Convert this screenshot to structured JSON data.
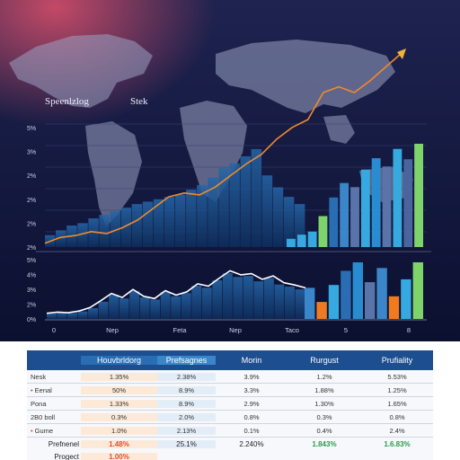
{
  "colors": {
    "bg_top": "#1e2350",
    "bg_bottom": "#0b1030",
    "glow": "#e0506a",
    "map": "#9aa3c2",
    "area": "#1b4f8a",
    "line_orange": "#f08a2c",
    "line_white": "#ffffff",
    "accent_green": "#7ed36b",
    "accent_orange": "#f07a20",
    "accent_cyan": "#36a9e0"
  },
  "chart_data": [
    {
      "type": "line",
      "title": "Speenlzlog",
      "subtitle": "Stek",
      "y_ticks": [
        "5%",
        "3%",
        "2%",
        "2%",
        "2%",
        "2%"
      ],
      "series": [
        {
          "values": [
            2,
            5,
            6,
            8,
            7,
            10,
            14,
            20,
            26,
            28,
            27,
            31,
            37,
            43,
            48,
            56,
            62,
            66,
            80,
            83,
            80,
            86,
            93,
            100
          ]
        }
      ],
      "area_values": [
        10,
        14,
        18,
        20,
        24,
        27,
        30,
        33,
        36,
        38,
        40,
        42,
        44,
        48,
        52,
        58,
        66,
        70,
        76,
        82,
        60,
        50,
        42,
        36
      ],
      "bars": [
        {
          "value": 8,
          "color": "#36a9e0"
        },
        {
          "value": 12,
          "color": "#36a9e0"
        },
        {
          "value": 15,
          "color": "#36a9e0"
        },
        {
          "value": 30,
          "color": "#7ed36b"
        },
        {
          "value": 48,
          "color": "#2a6db3"
        },
        {
          "value": 62,
          "color": "#3b86c9"
        },
        {
          "value": 58,
          "color": "#5a73a8"
        },
        {
          "value": 75,
          "color": "#36a9e0"
        },
        {
          "value": 86,
          "color": "#2a8cd0"
        },
        {
          "value": 78,
          "color": "#5a73a8"
        },
        {
          "value": 95,
          "color": "#36a9e0"
        },
        {
          "value": 85,
          "color": "#4a64a0"
        },
        {
          "value": 100,
          "color": "#7ed36b"
        }
      ]
    },
    {
      "type": "line",
      "y_ticks": [
        "5%",
        "4%",
        "3%",
        "2%",
        "0%"
      ],
      "x_ticks": [
        "0",
        "Nep",
        "Feta",
        "Nep",
        "Taco",
        "5",
        "8"
      ],
      "series": [
        {
          "values": [
            10,
            12,
            11,
            14,
            20,
            32,
            45,
            38,
            52,
            40,
            36,
            50,
            42,
            48,
            62,
            58,
            72,
            85,
            78,
            80,
            70,
            76,
            64,
            60,
            55
          ]
        }
      ],
      "bars": [
        {
          "value": 55,
          "color": "#3b86c9"
        },
        {
          "value": 30,
          "color": "#f07a20"
        },
        {
          "value": 60,
          "color": "#36a9e0"
        },
        {
          "value": 85,
          "color": "#2a6db3"
        },
        {
          "value": 100,
          "color": "#2a8cd0"
        },
        {
          "value": 65,
          "color": "#5a73a8"
        },
        {
          "value": 90,
          "color": "#3b86c9"
        },
        {
          "value": 40,
          "color": "#f07a20"
        },
        {
          "value": 70,
          "color": "#36a9e0"
        },
        {
          "value": 100,
          "color": "#7ed36b"
        }
      ]
    },
    {
      "type": "table",
      "columns": [
        "",
        "Houvbrldorg",
        "Prefsagnes",
        "Morin",
        "Rurgust",
        "Prufiality"
      ],
      "rows": [
        {
          "label": "Nesk",
          "bullet": false,
          "cells": [
            "1.35%",
            "2.38%",
            "3.9%",
            "1.2%",
            "5.53%"
          ]
        },
        {
          "label": "Eenal",
          "bullet": true,
          "cells": [
            "50%",
            "8.9%",
            "3.3%",
            "1.88%",
            "1.25%"
          ]
        },
        {
          "label": "Pona",
          "bullet": false,
          "cells": [
            "1.33%",
            "8.9%",
            "2.9%",
            "1.30%",
            "1.65%"
          ]
        },
        {
          "label": "2B0 boll",
          "bullet": false,
          "cells": [
            "0.3%",
            "2.0%",
            "0.8%",
            "0.3%",
            "0.8%"
          ]
        },
        {
          "label": "Gume",
          "bullet": true,
          "cells": [
            "1.0%",
            "2.13%",
            "0.1%",
            "0.4%",
            "2.4%"
          ]
        }
      ],
      "footer": [
        {
          "label": "Prefnenel",
          "cells": [
            "1.48%",
            "25.1%",
            "2.240%",
            "1.843%",
            "1.6.83%"
          ]
        },
        {
          "label": "Progect",
          "cells": [
            "1.00%",
            "",
            "",
            "",
            ""
          ]
        }
      ]
    }
  ]
}
